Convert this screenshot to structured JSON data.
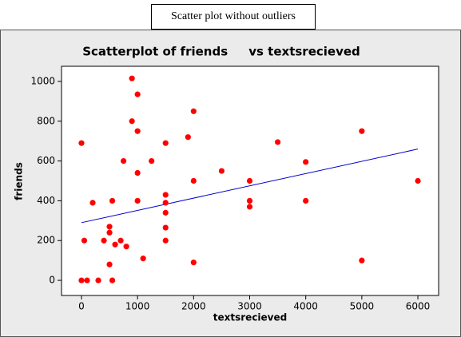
{
  "caption": "Scatter plot without outliers",
  "chart_data": {
    "type": "scatter",
    "title": "Scatterplot of friends     vs textsrecieved",
    "x_label": "textsrecieved",
    "y_label": "friends",
    "x": [
      0,
      0,
      100,
      50,
      200,
      300,
      400,
      500,
      500,
      500,
      550,
      550,
      600,
      700,
      750,
      800,
      900,
      900,
      1000,
      1000,
      1000,
      1000,
      1100,
      1250,
      1500,
      1500,
      1500,
      1500,
      1500,
      1500,
      1900,
      2000,
      2000,
      2000,
      2500,
      3000,
      3000,
      3000,
      3500,
      4000,
      4000,
      5000,
      5000,
      6000
    ],
    "y": [
      690,
      0,
      0,
      200,
      390,
      0,
      200,
      270,
      240,
      80,
      400,
      0,
      180,
      200,
      600,
      170,
      1015,
      800,
      935,
      750,
      540,
      400,
      110,
      600,
      690,
      430,
      390,
      340,
      265,
      200,
      720,
      850,
      500,
      90,
      550,
      500,
      400,
      370,
      695,
      595,
      400,
      750,
      100,
      500
    ],
    "color": "#ff0000",
    "fit_line": {
      "x": [
        0,
        6000
      ],
      "y": [
        290,
        660
      ],
      "color": "#0000cc"
    },
    "xlim": [
      -356,
      6370
    ],
    "ylim": [
      -76,
      1076
    ],
    "xticks": [
      0,
      1000,
      2000,
      3000,
      4000,
      5000,
      6000
    ],
    "yticks": [
      0,
      200,
      400,
      600,
      800,
      1000
    ]
  }
}
